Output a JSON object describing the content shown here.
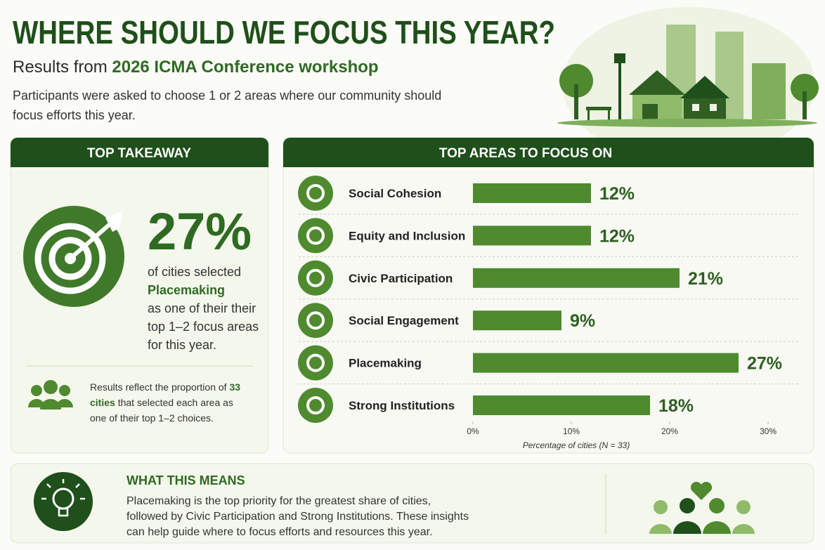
{
  "header": {
    "title": "WHERE SHOULD WE FOCUS THIS YEAR?",
    "subtitle_lead": "Results from",
    "subtitle_highlight": "2026 ICMA Conference workshop",
    "description": "Participants were asked to choose 1 or 2 areas where our community should focus efforts this year."
  },
  "takeaway": {
    "heading": "TOP TAKEAWAY",
    "stat": "27%",
    "line1": "of cities selected",
    "highlight": "Placemaking",
    "line2": "as one of their their top 1–2 focus areas for this year.",
    "note_lead": "Results reflect the proportion of",
    "note_highlight": "33 cities",
    "note_tail": "that selected each area as one of their top 1–2 choices."
  },
  "chart_data": {
    "type": "bar",
    "orientation": "horizontal",
    "title": "TOP AREAS TO FOCUS ON",
    "categories": [
      "Social Cohesion",
      "Equity and Inclusion",
      "Civic Participation",
      "Social Engagement",
      "Placemaking",
      "Strong Institutions"
    ],
    "values": [
      12,
      12,
      21,
      9,
      27,
      18
    ],
    "value_labels": [
      "12%",
      "12%",
      "21%",
      "9%",
      "27%",
      "18%"
    ],
    "color": "#4f8a2f",
    "xlim": [
      0,
      30
    ],
    "xticks": [
      {
        "value": 0,
        "label": "0%"
      },
      {
        "value": 10,
        "label": "10%"
      },
      {
        "value": 20,
        "label": "20%"
      },
      {
        "value": 30,
        "label": "30%"
      }
    ],
    "xlabel": "Percentage of cities (N = 33)"
  },
  "means": {
    "heading": "WHAT THIS MEANS",
    "text": "Placemaking is the top priority for the greatest share of cities, followed by Civic Participation and Strong Institutions. These insights can help guide where to focus efforts and resources this year."
  }
}
